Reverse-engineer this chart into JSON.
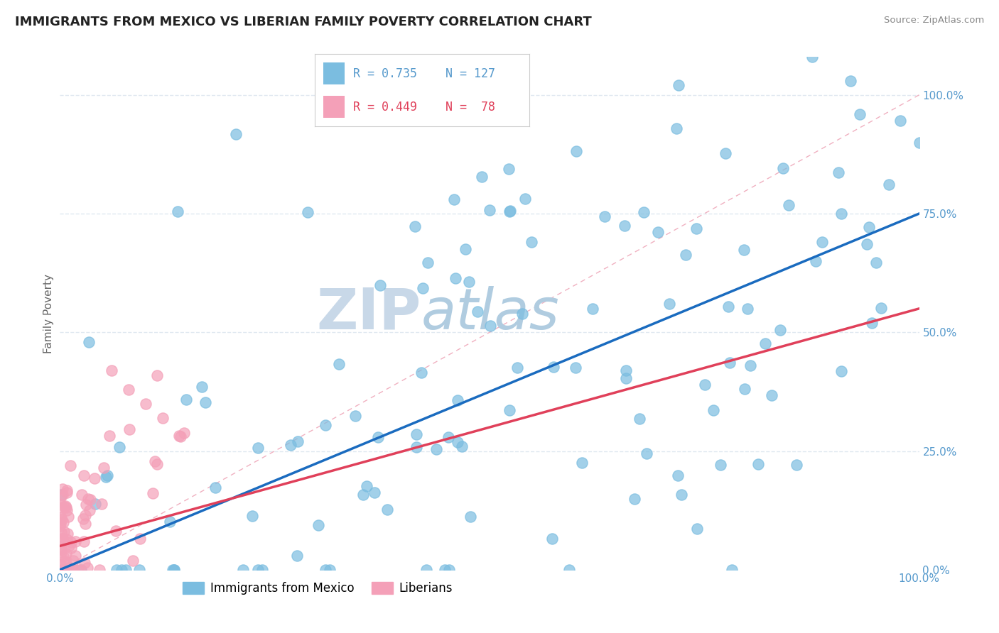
{
  "title": "IMMIGRANTS FROM MEXICO VS LIBERIAN FAMILY POVERTY CORRELATION CHART",
  "source": "Source: ZipAtlas.com",
  "ylabel": "Family Poverty",
  "legend_blue_label": "Immigrants from Mexico",
  "legend_pink_label": "Liberians",
  "R_blue": 0.735,
  "N_blue": 127,
  "R_pink": 0.449,
  "N_pink": 78,
  "blue_color": "#7bbde0",
  "pink_color": "#f4a0b8",
  "blue_line_color": "#1a6bbf",
  "pink_line_color": "#e0405a",
  "ref_line_color": "#d0d0d0",
  "watermark_color": "#e0e8f0",
  "background_color": "#ffffff",
  "title_fontsize": 13,
  "axis_label_color": "#5599cc",
  "grid_color": "#e0e8f0",
  "seed": 7
}
